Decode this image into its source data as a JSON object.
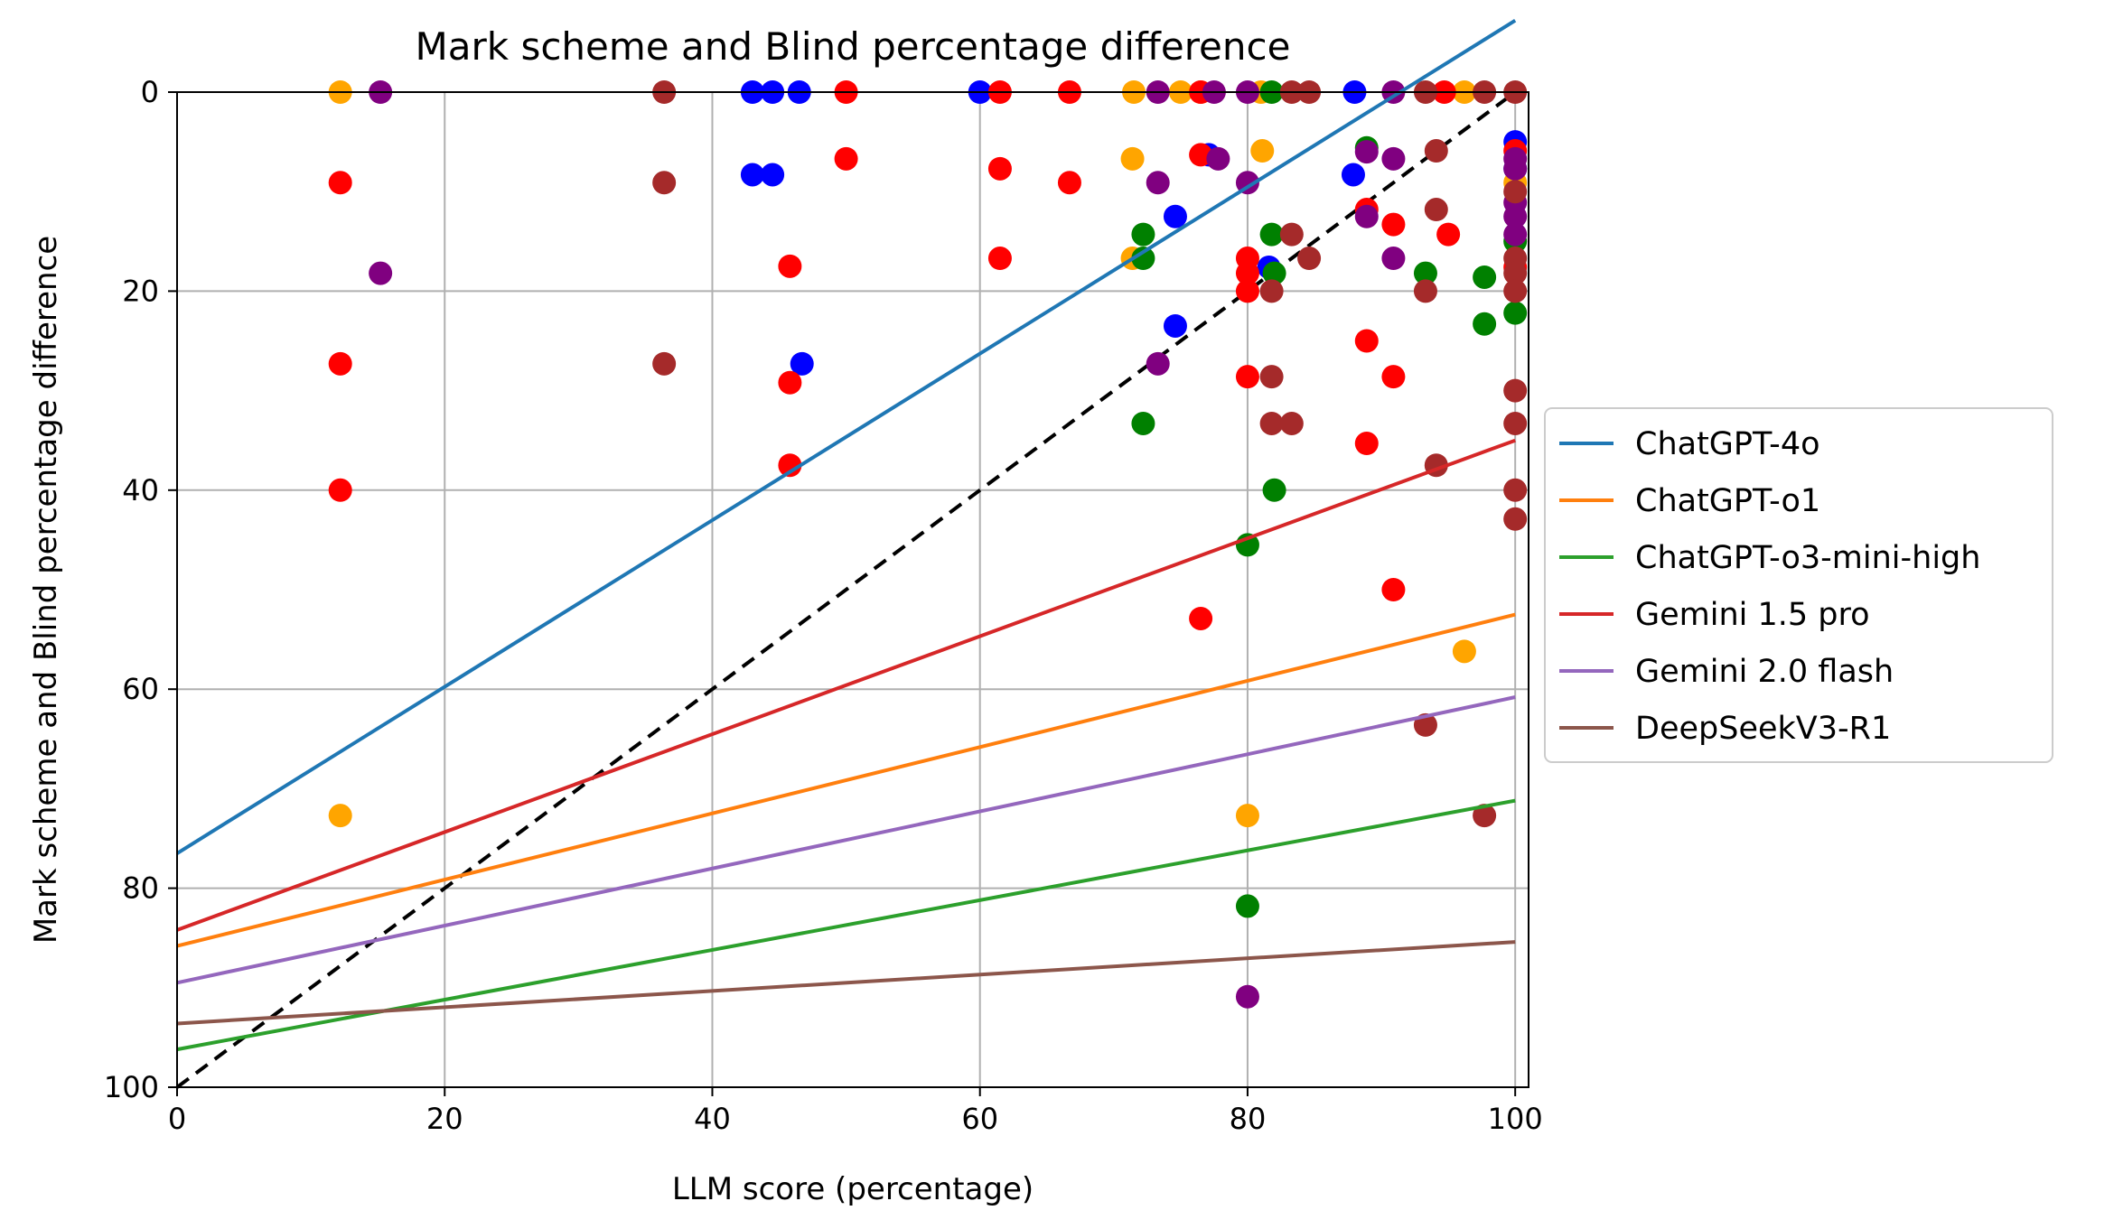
{
  "chart_data": {
    "type": "scatter",
    "title": "Mark scheme and Blind percentage difference",
    "xlabel": "LLM score (percentage)",
    "ylabel": "Mark scheme and Blind percentage difference",
    "xlim": [
      0,
      101
    ],
    "ylim": [
      100,
      0
    ],
    "y_axis_inverted": true,
    "grid": true,
    "legend_position": "center-right-outside",
    "xticks": [
      "0",
      "20",
      "40",
      "60",
      "80",
      "100"
    ],
    "yticks": [
      "0",
      "20",
      "40",
      "60",
      "80",
      "100"
    ],
    "reference_line": {
      "style": "dashed",
      "color": "#000000",
      "from": [
        0,
        100
      ],
      "to": [
        100,
        0
      ]
    },
    "series": [
      {
        "name": "ChatGPT-4o",
        "line_color": "#1f77b4",
        "point_color": "#0000ff",
        "fit": {
          "x0": 0,
          "y0": 76.5,
          "x1": 100,
          "y1": -7.2
        },
        "points": [
          [
            43,
            0
          ],
          [
            44.5,
            0
          ],
          [
            46.5,
            0
          ],
          [
            60,
            0
          ],
          [
            88,
            0
          ],
          [
            43,
            8.3
          ],
          [
            44.5,
            8.3
          ],
          [
            46.7,
            27.3
          ],
          [
            74.6,
            12.5
          ],
          [
            74.6,
            23.5
          ],
          [
            77.1,
            6.3
          ],
          [
            81.6,
            17.6
          ],
          [
            87.9,
            8.3
          ],
          [
            100,
            5.0
          ],
          [
            100,
            7.7
          ]
        ]
      },
      {
        "name": "ChatGPT-o1",
        "line_color": "#ff7f0e",
        "point_color": "#ffa500",
        "fit": {
          "x0": 0,
          "y0": 85.8,
          "x1": 100,
          "y1": 52.5
        },
        "points": [
          [
            12.2,
            0
          ],
          [
            71.5,
            0
          ],
          [
            75,
            0
          ],
          [
            76.5,
            0
          ],
          [
            81,
            0
          ],
          [
            96.2,
            0
          ],
          [
            71.4,
            6.7
          ],
          [
            71.4,
            16.7
          ],
          [
            81.1,
            5.9
          ],
          [
            12.2,
            72.7
          ],
          [
            80,
            72.7
          ],
          [
            96.2,
            56.2
          ],
          [
            100,
            9.1
          ]
        ]
      },
      {
        "name": "ChatGPT-o3-mini-high",
        "line_color": "#2ca02c",
        "point_color": "#008000",
        "fit": {
          "x0": 0,
          "y0": 96.2,
          "x1": 100,
          "y1": 71.2
        },
        "points": [
          [
            72.2,
            14.3
          ],
          [
            72.2,
            16.7
          ],
          [
            72.2,
            33.3
          ],
          [
            81.8,
            0
          ],
          [
            81.8,
            14.3
          ],
          [
            82,
            18.2
          ],
          [
            82,
            40
          ],
          [
            80,
            45.5
          ],
          [
            80,
            81.8
          ],
          [
            88.9,
            5.6
          ],
          [
            93.3,
            18.2
          ],
          [
            97.7,
            18.6
          ],
          [
            97.7,
            23.3
          ],
          [
            100,
            22.2
          ],
          [
            100,
            15.0
          ]
        ]
      },
      {
        "name": "Gemini 1.5 pro",
        "line_color": "#d62728",
        "point_color": "#ff0000",
        "fit": {
          "x0": 0,
          "y0": 84.2,
          "x1": 100,
          "y1": 35.0
        },
        "points": [
          [
            12.2,
            9.1
          ],
          [
            12.2,
            27.3
          ],
          [
            12.2,
            40
          ],
          [
            45.8,
            17.5
          ],
          [
            45.8,
            29.2
          ],
          [
            45.8,
            37.5
          ],
          [
            50,
            0
          ],
          [
            50,
            6.7
          ],
          [
            61.5,
            0
          ],
          [
            61.5,
            7.7
          ],
          [
            61.5,
            16.7
          ],
          [
            66.7,
            0
          ],
          [
            66.7,
            9.1
          ],
          [
            76.5,
            0
          ],
          [
            76.5,
            6.3
          ],
          [
            76.5,
            52.9
          ],
          [
            80,
            16.7
          ],
          [
            80,
            18.2
          ],
          [
            80,
            20
          ],
          [
            80,
            28.6
          ],
          [
            88.9,
            11.8
          ],
          [
            88.9,
            25.0
          ],
          [
            88.9,
            35.3
          ],
          [
            90.9,
            13.3
          ],
          [
            90.9,
            28.6
          ],
          [
            90.9,
            50
          ],
          [
            94.7,
            0
          ],
          [
            95,
            14.3
          ],
          [
            100,
            5.9
          ],
          [
            100,
            17.6
          ]
        ]
      },
      {
        "name": "Gemini 2.0 flash",
        "line_color": "#9467bd",
        "point_color": "#800080",
        "fit": {
          "x0": 0,
          "y0": 89.5,
          "x1": 100,
          "y1": 60.8
        },
        "points": [
          [
            15.2,
            0
          ],
          [
            15.2,
            18.2
          ],
          [
            73.3,
            0
          ],
          [
            73.3,
            9.1
          ],
          [
            73.3,
            27.3
          ],
          [
            77.5,
            0
          ],
          [
            77.8,
            6.7
          ],
          [
            80,
            0
          ],
          [
            80,
            9.1
          ],
          [
            80,
            90.9
          ],
          [
            88.9,
            6.0
          ],
          [
            88.9,
            12.5
          ],
          [
            90.9,
            0
          ],
          [
            90.9,
            6.7
          ],
          [
            90.9,
            16.7
          ],
          [
            100,
            6.7
          ],
          [
            100,
            7.7
          ],
          [
            100,
            11.1
          ],
          [
            100,
            12.5
          ],
          [
            100,
            14.3
          ]
        ]
      },
      {
        "name": "DeepSeekV3-R1",
        "line_color": "#8c564b",
        "point_color": "#a52a2a",
        "fit": {
          "x0": 0,
          "y0": 93.6,
          "x1": 100,
          "y1": 85.4
        },
        "points": [
          [
            36.4,
            0
          ],
          [
            36.4,
            9.1
          ],
          [
            36.4,
            27.3
          ],
          [
            81.8,
            20
          ],
          [
            81.8,
            28.6
          ],
          [
            81.8,
            33.3
          ],
          [
            83.3,
            0
          ],
          [
            83.3,
            14.3
          ],
          [
            83.3,
            33.3
          ],
          [
            84.6,
            0
          ],
          [
            84.6,
            16.7
          ],
          [
            93.3,
            0
          ],
          [
            93.3,
            20
          ],
          [
            93.3,
            63.6
          ],
          [
            94.1,
            5.9
          ],
          [
            94.1,
            11.8
          ],
          [
            94.1,
            37.5
          ],
          [
            97.7,
            0
          ],
          [
            97.7,
            72.7
          ],
          [
            100,
            0
          ],
          [
            100,
            10.0
          ],
          [
            100,
            16.7
          ],
          [
            100,
            18.2
          ],
          [
            100,
            20
          ],
          [
            100,
            30
          ],
          [
            100,
            33.3
          ],
          [
            100,
            40
          ],
          [
            100,
            42.9
          ]
        ]
      }
    ]
  }
}
